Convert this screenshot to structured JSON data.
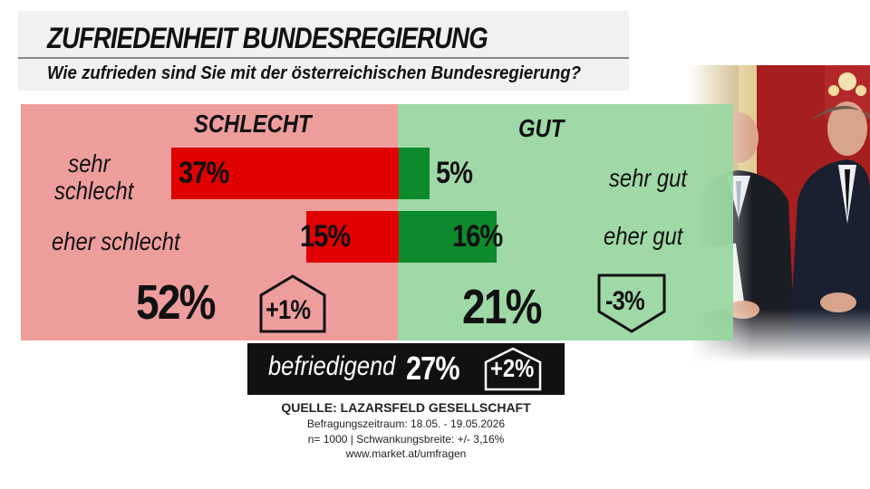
{
  "header": {
    "title": "ZUFRIEDENHEIT BUNDESREGIERUNG",
    "subtitle": "Wie zufrieden sind Sie mit der österreichischen Bundesregierung?"
  },
  "colors": {
    "negative_panel": "#ee9d9d",
    "positive_panel": "#98d6a0",
    "negative_bar": "#e00000",
    "positive_bar": "#0d8a2c",
    "neutral_box": "#111111"
  },
  "chart_data": {
    "type": "bar",
    "orientation": "diverging",
    "negative_header": "SCHLECHT",
    "positive_header": "GUT",
    "rows": [
      {
        "negative_label": "sehr\nschlecht",
        "negative_value": 37,
        "negative_text": "37%",
        "positive_label": "sehr gut",
        "positive_value": 5,
        "positive_text": "5%"
      },
      {
        "negative_label": "eher schlecht",
        "negative_value": 15,
        "negative_text": "15%",
        "positive_label": "eher gut",
        "positive_value": 16,
        "positive_text": "16%"
      }
    ],
    "totals": {
      "negative": "52%",
      "negative_change": "+1%",
      "negative_change_direction": "up",
      "positive": "21%",
      "positive_change": "-3%",
      "positive_change_direction": "down"
    },
    "neutral": {
      "label": "befriedigend",
      "value": "27%",
      "change": "+2%",
      "change_direction": "up"
    }
  },
  "source": {
    "line1": "QUELLE: LAZARSFELD GESELLSCHAFT",
    "line2": "Befragungszeitraum: 18.05. - 19.05.2026",
    "line3": "n= 1000 | Schwankungsbreite: +/- 3,16%",
    "line4": "www.market.at/umfragen"
  }
}
